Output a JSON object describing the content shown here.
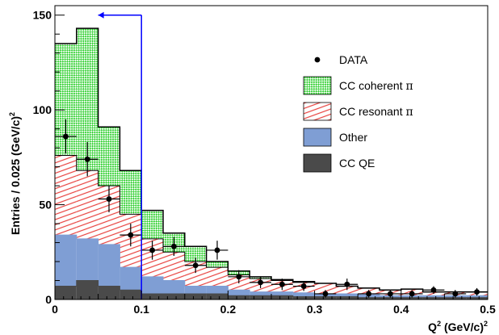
{
  "chart_data": {
    "type": "bar",
    "title": "",
    "xlabel": "Q",
    "xlabel_sup": "2",
    "xlabel_unit": " (GeV/c)",
    "xlabel_unit_sup": "2",
    "ylabel": "Entries / 0.025 (GeV/c)",
    "ylabel_sup": "2",
    "xlim": [
      0,
      0.5
    ],
    "ylim": [
      0,
      155
    ],
    "x_ticks": [
      0,
      0.1,
      0.2,
      0.3,
      0.4,
      0.5
    ],
    "x_tick_labels": [
      "0",
      "0.1",
      "0.2",
      "0.3",
      "0.4",
      "0.5"
    ],
    "y_ticks": [
      0,
      50,
      100,
      150
    ],
    "y_tick_labels": [
      "0",
      "50",
      "100",
      "150"
    ],
    "bin_edges": [
      0,
      0.025,
      0.05,
      0.075,
      0.1,
      0.125,
      0.15,
      0.175,
      0.2,
      0.225,
      0.25,
      0.275,
      0.3,
      0.325,
      0.35,
      0.375,
      0.4,
      0.425,
      0.45,
      0.475,
      0.5
    ],
    "stacked": true,
    "series": [
      {
        "name": "CC QE",
        "color": "#4a4a4a",
        "pattern": "solid",
        "values": [
          7,
          10,
          7,
          5,
          3,
          3,
          3,
          3,
          2,
          2,
          2,
          1.5,
          1.5,
          1.5,
          1,
          1,
          1,
          1,
          1,
          1
        ]
      },
      {
        "name": "Other",
        "color": "#7f9ed4",
        "pattern": "solid",
        "values": [
          27,
          22,
          22,
          12,
          9,
          7,
          4,
          4,
          3,
          2,
          2,
          2,
          1.5,
          1.5,
          1.5,
          1,
          1,
          1,
          1,
          1
        ]
      },
      {
        "name": "CC resonant π",
        "color": "#e8423f",
        "pattern": "hatch",
        "values": [
          42,
          36,
          31,
          28,
          20,
          15,
          13,
          10,
          8,
          7,
          6,
          5.5,
          5.5,
          4,
          3.5,
          3,
          3.5,
          2,
          2,
          2
        ]
      },
      {
        "name": "CC coherent π",
        "color": "#2fcf2f",
        "pattern": "checker",
        "values": [
          59,
          75,
          31,
          23,
          15,
          10,
          8,
          3,
          2,
          1,
          0.5,
          0.5,
          0,
          0,
          0,
          0,
          0,
          0,
          0,
          0
        ]
      }
    ],
    "data_points": {
      "name": "DATA",
      "x": [
        0.0125,
        0.0375,
        0.0625,
        0.0875,
        0.1125,
        0.1375,
        0.1625,
        0.1875,
        0.2125,
        0.2375,
        0.2625,
        0.2875,
        0.3125,
        0.3375,
        0.3625,
        0.3875,
        0.4125,
        0.4375,
        0.4625,
        0.4875
      ],
      "y": [
        86,
        74,
        53,
        34,
        26,
        28,
        18,
        26,
        12,
        9,
        8,
        7,
        3,
        8,
        3,
        3,
        3,
        5,
        3,
        4
      ],
      "yerr": [
        9,
        9,
        7,
        6,
        5,
        5,
        4,
        5,
        3.5,
        3,
        3,
        2.5,
        2,
        3,
        2,
        2,
        2,
        2,
        2,
        2
      ]
    },
    "cut_line": {
      "x": 0.1,
      "y_top": 150,
      "arrow_to_x": 0.05,
      "color": "#0000ff"
    },
    "legend": {
      "placement": "top-right",
      "entries": [
        {
          "label": "DATA",
          "label_suffix": "",
          "kind": "marker"
        },
        {
          "label": "CC coherent ",
          "label_suffix": "π",
          "kind": "checker",
          "color": "#2fcf2f"
        },
        {
          "label": "CC resonant ",
          "label_suffix": "π",
          "kind": "hatch",
          "color": "#e8423f"
        },
        {
          "label": "Other",
          "label_suffix": "",
          "kind": "solid",
          "color": "#7f9ed4"
        },
        {
          "label": "CC QE",
          "label_suffix": "",
          "kind": "solid",
          "color": "#4a4a4a"
        }
      ]
    },
    "grid": false
  }
}
